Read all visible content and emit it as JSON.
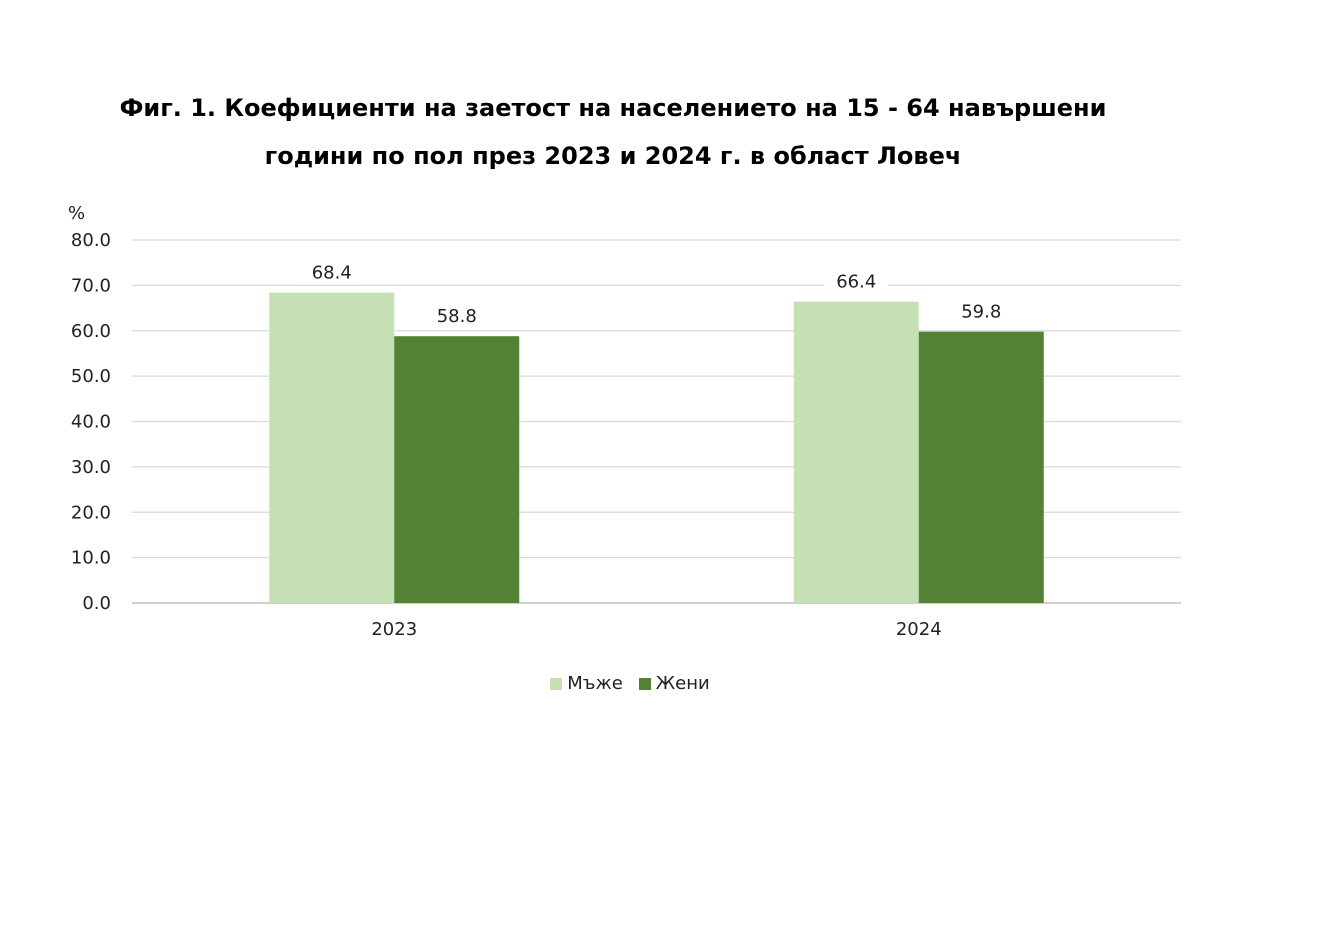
{
  "title_line1": "Фиг. 1. Коефициенти на заетост на населението на 15 - 64 навършени",
  "title_line2": "години по пол през 2023 и 2024 г. в област Ловеч",
  "chart_data": {
    "type": "bar",
    "ylabel": "%",
    "ylim": [
      0,
      80
    ],
    "ytick_step": 10,
    "yticks": [
      "0.0",
      "10.0",
      "20.0",
      "30.0",
      "40.0",
      "50.0",
      "60.0",
      "70.0",
      "80.0"
    ],
    "categories": [
      "2023",
      "2024"
    ],
    "series": [
      {
        "name": "Мъже",
        "color": "#c5e0b4",
        "values": [
          68.4,
          66.4
        ],
        "labels": [
          "68.4",
          "66.4"
        ]
      },
      {
        "name": "Жени",
        "color": "#548235",
        "values": [
          58.8,
          59.8
        ],
        "labels": [
          "58.8",
          "59.8"
        ]
      }
    ],
    "grid": true,
    "legend_position": "bottom"
  }
}
